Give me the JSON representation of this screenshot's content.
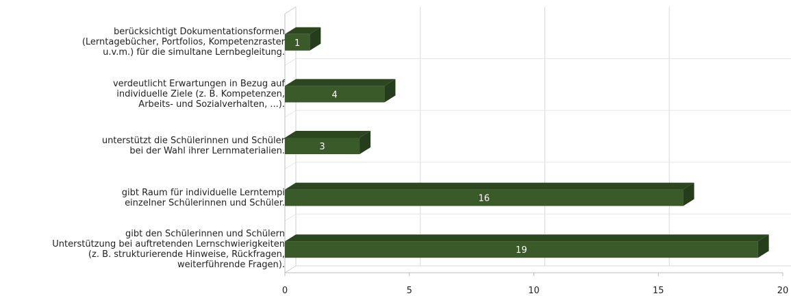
{
  "chart_data": {
    "type": "bar",
    "orientation": "horizontal",
    "style": "3d",
    "categories": [
      "berücksichtigt Dokumentationsformen\n(Lerntagebücher, Portfolios, Kompetenzraster\nu.v.m.) für die simultane Lernbegleitung.",
      "verdeutlicht Erwartungen in Bezug auf\nindividuelle Ziele (z. B. Kompetenzen,\nArbeits- und Sozialverhalten, ...).",
      "unterstützt die Schülerinnen und Schüler\nbei der Wahl ihrer Lernmaterialien.",
      "gibt Raum für individuelle Lerntempi\neinzelner Schülerinnen und Schüler.",
      "gibt den Schülerinnen und Schülern\nUnterstützung bei auftretenden Lernschwierigkeiten\n(z. B. strukturierende Hinweise, Rückfragen,\nweiterführende Fragen)."
    ],
    "values": [
      1,
      4,
      3,
      16,
      19
    ],
    "data_labels": [
      "1",
      "4",
      "3",
      "16",
      "19"
    ],
    "xlim": [
      0,
      20
    ],
    "x_ticks": [
      0,
      5,
      10,
      15,
      20
    ],
    "x_tick_labels": [
      "0",
      "5",
      "10",
      "15",
      "20"
    ],
    "grid": true,
    "legend": "none",
    "colors": {
      "bar_front": "#3a5a2a",
      "bar_top": "#2c4720",
      "bar_side": "#263d1b",
      "grid": "#d8d8d8",
      "label_text": "#ffffff",
      "tick_text": "#222222"
    }
  }
}
